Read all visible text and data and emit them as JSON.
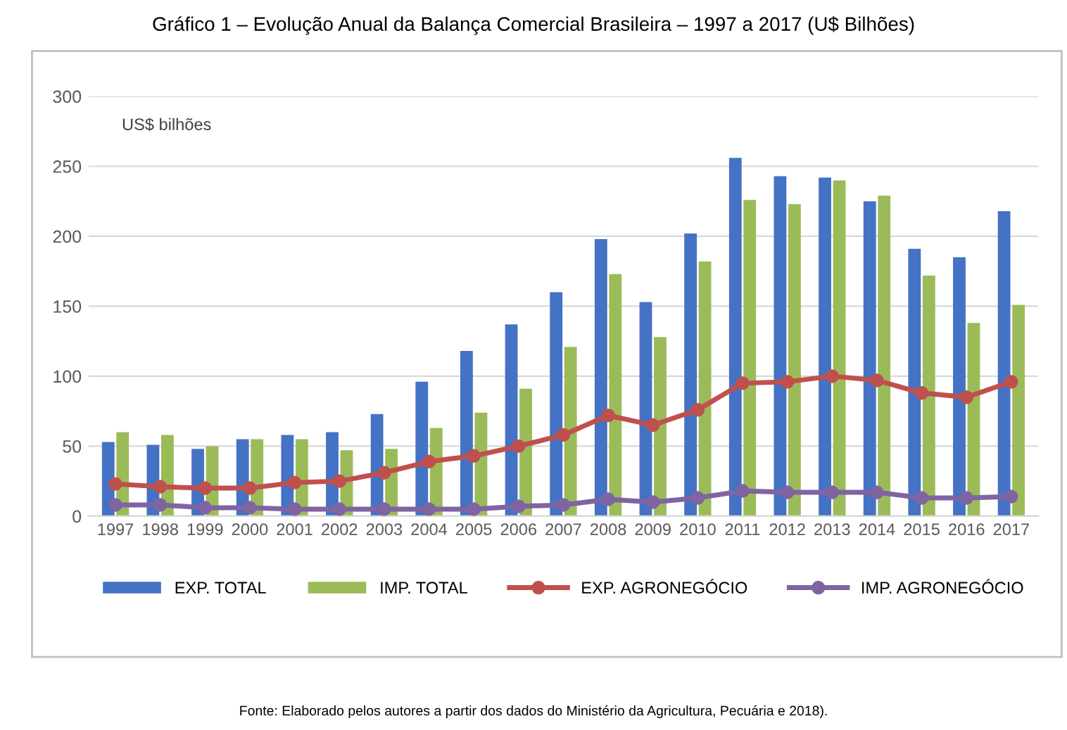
{
  "chart_data": {
    "type": "bar",
    "title": "Gráfico 1 – Evolução Anual da Balança Comercial Brasileira – 1997 a 2017 (U$ Bilhões)",
    "categories": [
      "1997",
      "1998",
      "1999",
      "2000",
      "2001",
      "2002",
      "2003",
      "2004",
      "2005",
      "2006",
      "2007",
      "2008",
      "2009",
      "2010",
      "2011",
      "2012",
      "2013",
      "2014",
      "2015",
      "2016",
      "2017"
    ],
    "series": [
      {
        "name": "EXP. TOTAL",
        "color": "#4472c4",
        "values": [
          53,
          51,
          48,
          55,
          58,
          60,
          73,
          96,
          118,
          137,
          160,
          198,
          153,
          202,
          256,
          243,
          242,
          225,
          191,
          185,
          218
        ]
      },
      {
        "name": "IMP. TOTAL",
        "color": "#9bbb59",
        "values": [
          60,
          58,
          50,
          55,
          55,
          47,
          48,
          63,
          74,
          91,
          121,
          173,
          128,
          182,
          226,
          223,
          240,
          229,
          172,
          138,
          151
        ]
      },
      {
        "name": "EXP. AGRONEGÓCIO",
        "type": "line",
        "color": "#c0504d",
        "values": [
          23,
          21,
          20,
          20,
          24,
          25,
          31,
          39,
          43,
          50,
          58,
          72,
          65,
          76,
          95,
          96,
          100,
          97,
          88,
          85,
          96
        ]
      },
      {
        "name": "IMP. AGRONEGÓCIO",
        "type": "line",
        "color": "#8064a2",
        "values": [
          8,
          8,
          6,
          6,
          5,
          5,
          5,
          5,
          5,
          7,
          8,
          12,
          10,
          13,
          18,
          17,
          17,
          17,
          13,
          13,
          14
        ]
      }
    ],
    "ylim": [
      0,
      300
    ],
    "yticks": [
      0,
      50,
      100,
      150,
      200,
      250,
      300
    ],
    "grid": "y",
    "legend": "bottom",
    "marker": "circle",
    "annotations": [
      {
        "text": "US$ bilhões"
      },
      {
        "text": "Fonte: Elaborado pelos autores a partir dos dados do Ministério da Agricultura, Pecuária e 2018)."
      }
    ]
  }
}
